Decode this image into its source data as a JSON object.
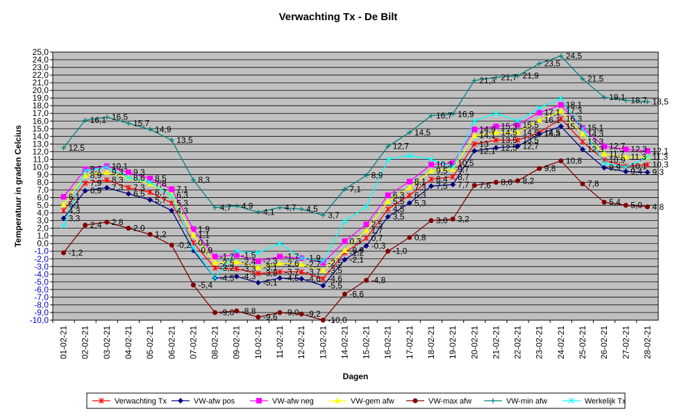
{
  "chart_data": {
    "type": "line",
    "title": "Verwachting Tx - De Bilt",
    "xlabel": "Dagen",
    "ylabel": "Temperatuur in graden Celcius",
    "ylim": [
      -10,
      25
    ],
    "ytick_step": 1,
    "grid": true,
    "plot_background": "#c0c0c0",
    "legend_position": "bottom",
    "categories": [
      "01-02-21",
      "02-02-21",
      "03-02-21",
      "04-02-21",
      "05-02-21",
      "06-02-21",
      "07-02-21",
      "08-02-21",
      "09-02-21",
      "10-02-21",
      "11-02-21",
      "12-02-21",
      "13-02-21",
      "14-02-21",
      "15-02-21",
      "16-02-21",
      "17-02-21",
      "18-02-21",
      "19-02-21",
      "20-02-21",
      "21-02-21",
      "22-02-21",
      "23-02-21",
      "24-02-21",
      "25-02-21",
      "26-02-21",
      "27-02-21",
      "28-02-21"
    ],
    "series": [
      {
        "name": "Verwachting Tx",
        "color": "#ff0000",
        "marker": "star",
        "values": [
          4.3,
          7.9,
          8.3,
          7.3,
          6.7,
          5.3,
          0.1,
          -3.2,
          -3.3,
          -3.9,
          -3.7,
          -3.7,
          -4.6,
          -1.2,
          0.7,
          4.5,
          6.3,
          8.4,
          8.7,
          13.0,
          13.5,
          13.5,
          14.5,
          16.3,
          13.3,
          10.9,
          10.1,
          10.3
        ]
      },
      {
        "name": "VW-afw pos",
        "color": "#000080",
        "marker": "diamond",
        "values": [
          3.3,
          6.9,
          7.3,
          6.5,
          5.7,
          4.3,
          -0.9,
          -4.5,
          -4.3,
          -5.1,
          -4.5,
          -4.6,
          -5.5,
          -2.1,
          -0.3,
          3.5,
          5.3,
          7.5,
          7.7,
          12.1,
          12.5,
          12.7,
          14.3,
          15.3,
          12.3,
          9.9,
          9.4,
          9.3
        ]
      },
      {
        "name": "VW-afw neg",
        "color": "#ff00ff",
        "marker": "square",
        "values": [
          6.1,
          9.7,
          10.1,
          9.3,
          8.5,
          7.1,
          1.9,
          -1.7,
          -1.5,
          -2.3,
          -1.7,
          -1.9,
          -2.5,
          0.3,
          2.5,
          6.3,
          8.1,
          10.3,
          10.5,
          14.9,
          15.3,
          15.5,
          17.1,
          18.1,
          15.1,
          12.7,
          12.3,
          12.1
        ]
      },
      {
        "name": "VW-gem afw",
        "color": "#ffff00",
        "marker": "triangle",
        "values": [
          5.1,
          8.9,
          9.3,
          8.6,
          7.8,
          6.3,
          1.1,
          -2.5,
          -2.4,
          -3.1,
          -2.6,
          -2.7,
          -3.5,
          -0.9,
          1.7,
          5.5,
          7.3,
          9.5,
          9.7,
          14.1,
          14.5,
          14.5,
          16.1,
          17.3,
          14.3,
          11.7,
          11.3,
          11.3
        ]
      },
      {
        "name": "VW-max afw",
        "color": "#800000",
        "marker": "circle",
        "values": [
          -1.2,
          2.4,
          2.8,
          2.0,
          1.2,
          -0.2,
          -5.4,
          -9.0,
          -8.8,
          -9.6,
          -9.0,
          -9.2,
          -10.0,
          -6.6,
          -4.8,
          -1.0,
          0.8,
          3.0,
          3.2,
          7.6,
          8.0,
          8.2,
          9.8,
          10.8,
          7.8,
          5.4,
          5.0,
          4.8
        ]
      },
      {
        "name": "VW-min afw",
        "color": "#008080",
        "marker": "plus",
        "values": [
          12.5,
          16.1,
          16.5,
          15.7,
          14.9,
          13.5,
          8.3,
          4.7,
          4.9,
          4.1,
          4.7,
          4.5,
          3.7,
          7.1,
          8.9,
          12.7,
          14.5,
          16.7,
          16.9,
          21.3,
          21.7,
          21.9,
          23.5,
          24.5,
          21.5,
          19.1,
          18.7,
          18.5
        ]
      },
      {
        "name": "Werkelijk Tx",
        "color": "#00ffff",
        "marker": "x",
        "values": [
          2.3,
          9.5,
          10.0,
          8.6,
          8.0,
          6.2,
          -0.6,
          -4.5,
          -1.0,
          -1.2,
          0.0,
          -1.9,
          -2.3,
          2.9,
          4.8,
          11.0,
          11.5,
          11.0,
          10.0,
          16.0,
          17.0,
          16.0,
          17.7,
          19.0,
          15.0,
          10.5,
          10.0,
          11.3
        ]
      }
    ],
    "data_labels": {
      "Verwachting Tx": [
        "4,3",
        "7,9",
        "8,3",
        "7,3",
        "6,7",
        "5,3",
        "0,1",
        "-3,2",
        "-3,3",
        "-3,9",
        "-3,7",
        "-3,7",
        "-4,6",
        "-1,2",
        "0,7",
        "4,5",
        "6,3",
        "8,4",
        "8,7",
        "13",
        "13,5",
        "13,5",
        "14,5",
        "16,3",
        "13,3",
        "10,9",
        "10,1",
        "10,3"
      ],
      "VW-afw pos": [
        "3,3",
        "6,9",
        "7,3",
        "6,5",
        "5,7",
        "4,3",
        "-0,9",
        "-4,5",
        "-4,3",
        "-5,1",
        "-4,5",
        "-4,6",
        "-5,5",
        "-2,1",
        "-0,3",
        "3,5",
        "5,3",
        "7,5",
        "7,7",
        "12,1",
        "12,5",
        "12,7",
        "14,3",
        "15,3",
        "12,3",
        "9,9",
        "9,4",
        "9,3"
      ],
      "VW-afw neg": [
        "6,1",
        "9,7",
        "10,1",
        "9,3",
        "8,5",
        "7,1",
        "1,9",
        "-1,7",
        "-1,5",
        "-2,3",
        "-1,7",
        "-1,9",
        "-2,5",
        "0,3",
        "2,5",
        "6,3",
        "8,1",
        "10,3",
        "10,5",
        "14,9",
        "15,3",
        "15,5",
        "17,1",
        "18,1",
        "15,1",
        "12,7",
        "12,3",
        "12,1"
      ],
      "VW-gem afw": [
        "5,1",
        "8,9",
        "9,3",
        "8,6",
        "7,8",
        "6,3",
        "1,1",
        "-2,5",
        "-2,4",
        "-3,1",
        "-2,6",
        "-2,7",
        "-3,5",
        "-0,9",
        "1,7",
        "5,5",
        "7,3",
        "9,5",
        "9,7",
        "14,1",
        "14,5",
        "14,5",
        "16,1",
        "17,3",
        "14,3",
        "11,7",
        "11,3",
        "11,3"
      ],
      "VW-max afw": [
        "-1,2",
        "2,4",
        "2,8",
        "2,0",
        "1,2",
        "-0,2",
        "-5,4",
        "-9,0",
        "-8,8",
        "-9,6",
        "-9,0",
        "-9,2",
        "-10,0",
        "-6,6",
        "-4,8",
        "-1,0",
        "0,8",
        "3,0",
        "3,2",
        "7,6",
        "8,0",
        "8,2",
        "9,8",
        "10,8",
        "7,8",
        "5,4",
        "5,0",
        "4,8"
      ],
      "VW-min afw": [
        "12,5",
        "16,1",
        "16,5",
        "15,7",
        "14,9",
        "13,5",
        "8,3",
        "4,7",
        "4,9",
        "4,1",
        "4,7",
        "4,5",
        "3,7",
        "7,1",
        "8,9",
        "12,7",
        "14,5",
        "16,7",
        "16,9",
        "21,3",
        "21,7",
        "21,9",
        "23,5",
        "24,5",
        "21,5",
        "19,1",
        "18,7",
        "18,5"
      ],
      "Werkelijk Tx": [
        "",
        "",
        "",
        "",
        "",
        "",
        "",
        "",
        "",
        "",
        "",
        "",
        "",
        "",
        "",
        "",
        "",
        "",
        "",
        "",
        "",
        "",
        "",
        "",
        "",
        "",
        "",
        ""
      ]
    }
  }
}
